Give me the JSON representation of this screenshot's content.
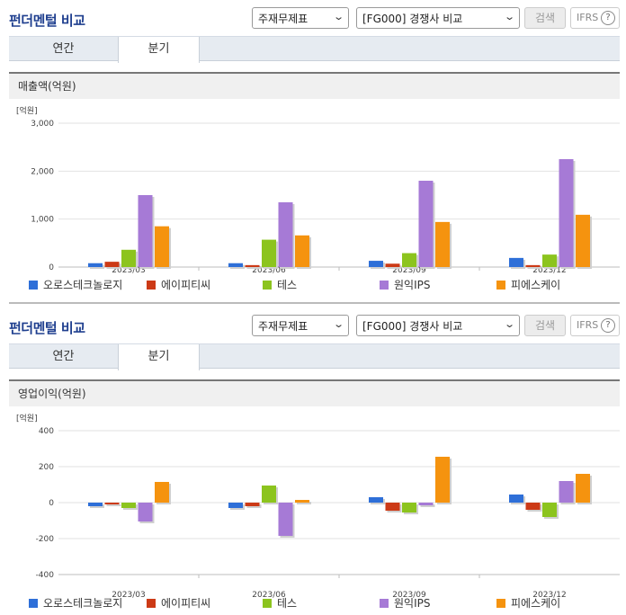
{
  "sections": [
    {
      "title": "펀더멘털 비교",
      "select1": "주재무제표",
      "select2": "[FG000] 경쟁사 비교",
      "search_label": "검색",
      "ifrs_label": "IFRS",
      "help_label": "?",
      "tabs": [
        {
          "label": "연간"
        },
        {
          "label": "분기"
        }
      ],
      "active_tab": "분기",
      "subtitle": "매출액(억원)"
    },
    {
      "title": "펀더멘털 비교",
      "select1": "주재무제표",
      "select2": "[FG000] 경쟁사 비교",
      "search_label": "검색",
      "ifrs_label": "IFRS",
      "help_label": "?",
      "tabs": [
        {
          "label": "연간"
        },
        {
          "label": "분기"
        }
      ],
      "active_tab": "분기",
      "subtitle": "영업이익(억원)"
    }
  ],
  "icons": {
    "dropdown": "chevron-down-icon",
    "help": "question-circle-icon"
  },
  "chart_data": [
    {
      "type": "bar",
      "unit_label": "[억원]",
      "categories": [
        "2023/03",
        "2023/06",
        "2023/09",
        "2023/12"
      ],
      "ylim": [
        0,
        3000
      ],
      "yticks": [
        0,
        1000,
        2000,
        3000
      ],
      "ytick_labels": [
        "0",
        "1,000",
        "2,000",
        "3,000"
      ],
      "grid": true,
      "legend_position": "bottom",
      "series": [
        {
          "name": "오로스테크놀로지",
          "color": "#2e6fd8",
          "values": [
            80,
            80,
            130,
            190
          ]
        },
        {
          "name": "에이피티씨",
          "color": "#cc3a16",
          "values": [
            110,
            40,
            70,
            40
          ]
        },
        {
          "name": "테스",
          "color": "#8cc41e",
          "values": [
            360,
            570,
            290,
            260
          ]
        },
        {
          "name": "원익IPS",
          "color": "#a67ad6",
          "values": [
            1500,
            1350,
            1800,
            2250
          ]
        },
        {
          "name": "피에스케이",
          "color": "#f5930f",
          "values": [
            850,
            660,
            940,
            1090
          ]
        }
      ]
    },
    {
      "type": "bar",
      "unit_label": "[억원]",
      "categories": [
        "2023/03",
        "2023/06",
        "2023/09",
        "2023/12"
      ],
      "ylim": [
        -400,
        400
      ],
      "yticks": [
        -400,
        -200,
        0,
        200,
        400
      ],
      "ytick_labels": [
        "-400",
        "-200",
        "0",
        "200",
        "400"
      ],
      "grid": true,
      "legend_position": "bottom",
      "series": [
        {
          "name": "오로스테크놀로지",
          "color": "#2e6fd8",
          "values": [
            -20,
            -30,
            30,
            45
          ]
        },
        {
          "name": "에이피티씨",
          "color": "#cc3a16",
          "values": [
            -10,
            -20,
            -45,
            -40
          ]
        },
        {
          "name": "테스",
          "color": "#8cc41e",
          "values": [
            -30,
            95,
            -55,
            -80
          ]
        },
        {
          "name": "원익IPS",
          "color": "#a67ad6",
          "values": [
            -105,
            -185,
            -15,
            120
          ]
        },
        {
          "name": "피에스케이",
          "color": "#f5930f",
          "values": [
            115,
            15,
            255,
            160
          ]
        }
      ]
    }
  ]
}
